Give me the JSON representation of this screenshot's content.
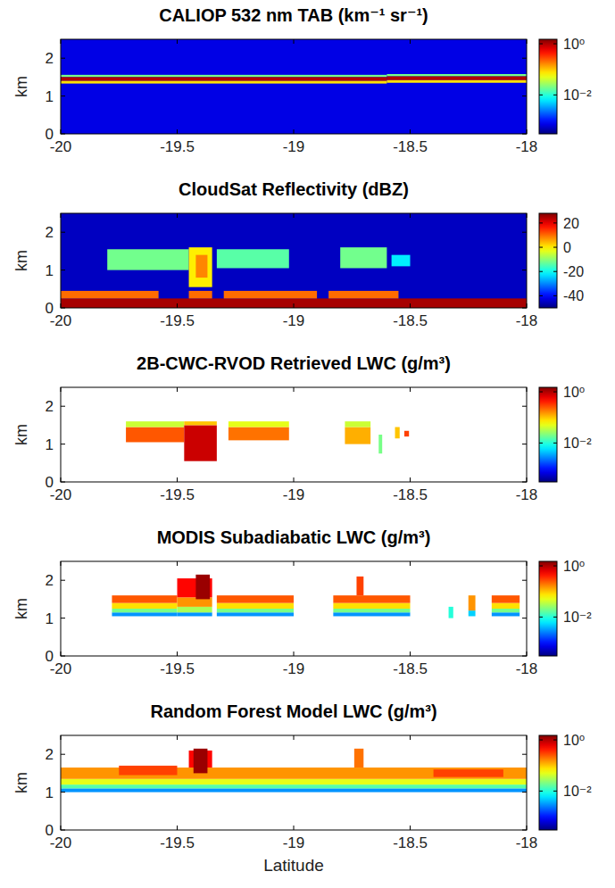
{
  "chart_data": [
    {
      "type": "heatmap",
      "title": "CALIOP 532 nm TAB (km⁻¹ sr⁻¹)",
      "ylabel": "km",
      "xlim": [
        -20,
        -18
      ],
      "xticks": [
        -20,
        -19.5,
        -19,
        -18.5,
        -18
      ],
      "ylim": [
        0,
        2.5
      ],
      "yticks": [
        0,
        1,
        2
      ],
      "colorbar": {
        "range": [
          0.0003,
          1.5
        ],
        "log": true,
        "ticks": [
          {
            "value": 1,
            "label": "10⁰"
          },
          {
            "value": 0.01,
            "label": "10⁻²"
          }
        ]
      },
      "cells": [
        {
          "x": [
            -20,
            -18
          ],
          "y": [
            0,
            2.5
          ],
          "value": 0.0007
        },
        {
          "x": [
            -20,
            -18.6
          ],
          "y": [
            1.5,
            1.56
          ],
          "value": 0.02
        },
        {
          "x": [
            -20,
            -18.6
          ],
          "y": [
            1.4,
            1.5
          ],
          "value": 1
        },
        {
          "x": [
            -20,
            -18.6
          ],
          "y": [
            1.33,
            1.4
          ],
          "value": 0.08
        },
        {
          "x": [
            -18.6,
            -18
          ],
          "y": [
            1.52,
            1.58
          ],
          "value": 0.02
        },
        {
          "x": [
            -18.6,
            -18
          ],
          "y": [
            1.42,
            1.52
          ],
          "value": 1
        },
        {
          "x": [
            -18.6,
            -18
          ],
          "y": [
            1.35,
            1.42
          ],
          "value": 0.08
        }
      ]
    },
    {
      "type": "heatmap",
      "title": "CloudSat Reflectivity (dBZ)",
      "ylabel": "km",
      "xlim": [
        -20,
        -18
      ],
      "xticks": [
        -20,
        -19.5,
        -19,
        -18.5,
        -18
      ],
      "ylim": [
        0,
        2.5
      ],
      "yticks": [
        0,
        1,
        2
      ],
      "colorbar": {
        "range": [
          -50,
          28
        ],
        "log": false,
        "ticks": [
          20,
          0,
          -20,
          -40
        ]
      },
      "cells": [
        {
          "x": [
            -20,
            -18
          ],
          "y": [
            0,
            2.5
          ],
          "value": -45
        },
        {
          "x": [
            -20,
            -18
          ],
          "y": [
            0,
            0.25
          ],
          "value": 25
        },
        {
          "x": [
            -20,
            -19.58
          ],
          "y": [
            0.25,
            0.45
          ],
          "value": 10
        },
        {
          "x": [
            -19.45,
            -19.35
          ],
          "y": [
            0.25,
            0.45
          ],
          "value": 10
        },
        {
          "x": [
            -19.3,
            -18.9
          ],
          "y": [
            0.25,
            0.45
          ],
          "value": 10
        },
        {
          "x": [
            -18.85,
            -18.55
          ],
          "y": [
            0.25,
            0.45
          ],
          "value": 10
        },
        {
          "x": [
            -19.8,
            -19.45
          ],
          "y": [
            1.0,
            1.55
          ],
          "value": -12
        },
        {
          "x": [
            -19.45,
            -19.35
          ],
          "y": [
            0.55,
            1.6
          ],
          "value": 0
        },
        {
          "x": [
            -19.42,
            -19.37
          ],
          "y": [
            0.8,
            1.4
          ],
          "value": 8
        },
        {
          "x": [
            -19.33,
            -19.02
          ],
          "y": [
            1.05,
            1.55
          ],
          "value": -14
        },
        {
          "x": [
            -18.8,
            -18.6
          ],
          "y": [
            1.05,
            1.6
          ],
          "value": -12
        },
        {
          "x": [
            -18.58,
            -18.5
          ],
          "y": [
            1.1,
            1.4
          ],
          "value": -22
        }
      ]
    },
    {
      "type": "heatmap",
      "title": "2B-CWC-RVOD Retrieved LWC (g/m³)",
      "ylabel": "km",
      "xlim": [
        -20,
        -18
      ],
      "xticks": [
        -20,
        -19.5,
        -19,
        -18.5,
        -18
      ],
      "ylim": [
        0,
        2.5
      ],
      "yticks": [
        0,
        1,
        2
      ],
      "colorbar": {
        "range": [
          0.0003,
          1.5
        ],
        "log": true,
        "ticks": [
          {
            "value": 1,
            "label": "10⁰"
          },
          {
            "value": 0.01,
            "label": "10⁻²"
          }
        ]
      },
      "cells": [
        {
          "x": [
            -19.72,
            -19.47
          ],
          "y": [
            1.05,
            1.45
          ],
          "value": 0.25
        },
        {
          "x": [
            -19.72,
            -19.47
          ],
          "y": [
            1.45,
            1.6
          ],
          "value": 0.04
        },
        {
          "x": [
            -19.47,
            -19.33
          ],
          "y": [
            0.55,
            1.5
          ],
          "value": 0.8
        },
        {
          "x": [
            -19.47,
            -19.33
          ],
          "y": [
            1.5,
            1.6
          ],
          "value": 0.1
        },
        {
          "x": [
            -19.28,
            -19.02
          ],
          "y": [
            1.1,
            1.45
          ],
          "value": 0.2
        },
        {
          "x": [
            -19.28,
            -19.02
          ],
          "y": [
            1.45,
            1.6
          ],
          "value": 0.05
        },
        {
          "x": [
            -18.78,
            -18.67
          ],
          "y": [
            1.0,
            1.45
          ],
          "value": 0.12
        },
        {
          "x": [
            -18.78,
            -18.67
          ],
          "y": [
            1.45,
            1.6
          ],
          "value": 0.04
        },
        {
          "x": [
            -18.635,
            -18.62
          ],
          "y": [
            0.75,
            1.25
          ],
          "value": 0.02
        },
        {
          "x": [
            -18.565,
            -18.545
          ],
          "y": [
            1.15,
            1.45
          ],
          "value": 0.1
        },
        {
          "x": [
            -18.525,
            -18.505
          ],
          "y": [
            1.2,
            1.35
          ],
          "value": 0.3
        }
      ]
    },
    {
      "type": "heatmap",
      "title": "MODIS Subadiabatic LWC (g/m³)",
      "ylabel": "km",
      "xlim": [
        -20,
        -18
      ],
      "xticks": [
        -20,
        -19.5,
        -19,
        -18.5,
        -18
      ],
      "ylim": [
        0,
        2.5
      ],
      "yticks": [
        0,
        1,
        2
      ],
      "colorbar": {
        "range": [
          0.0003,
          1.5
        ],
        "log": true,
        "ticks": [
          {
            "value": 1,
            "label": "10⁰"
          },
          {
            "value": 0.01,
            "label": "10⁻²"
          }
        ]
      },
      "cells": [
        {
          "x": [
            -19.78,
            -19.5
          ],
          "y": [
            1.05,
            1.15
          ],
          "value": 0.003
        },
        {
          "x": [
            -19.78,
            -19.5
          ],
          "y": [
            1.15,
            1.25
          ],
          "value": 0.02
        },
        {
          "x": [
            -19.78,
            -19.5
          ],
          "y": [
            1.25,
            1.4
          ],
          "value": 0.08
        },
        {
          "x": [
            -19.78,
            -19.5
          ],
          "y": [
            1.4,
            1.6
          ],
          "value": 0.25
        },
        {
          "x": [
            -19.5,
            -19.35
          ],
          "y": [
            1.05,
            1.15
          ],
          "value": 0.003
        },
        {
          "x": [
            -19.5,
            -19.35
          ],
          "y": [
            1.15,
            1.3
          ],
          "value": 0.03
        },
        {
          "x": [
            -19.5,
            -19.35
          ],
          "y": [
            1.3,
            1.55
          ],
          "value": 0.15
        },
        {
          "x": [
            -19.5,
            -19.35
          ],
          "y": [
            1.55,
            2.05
          ],
          "value": 0.5
        },
        {
          "x": [
            -19.42,
            -19.36
          ],
          "y": [
            1.5,
            2.15
          ],
          "value": 1.2
        },
        {
          "x": [
            -19.33,
            -19.0
          ],
          "y": [
            1.05,
            1.15
          ],
          "value": 0.003
        },
        {
          "x": [
            -19.33,
            -19.0
          ],
          "y": [
            1.15,
            1.25
          ],
          "value": 0.02
        },
        {
          "x": [
            -19.33,
            -19.0
          ],
          "y": [
            1.25,
            1.4
          ],
          "value": 0.08
        },
        {
          "x": [
            -19.33,
            -19.0
          ],
          "y": [
            1.4,
            1.6
          ],
          "value": 0.25
        },
        {
          "x": [
            -18.83,
            -18.5
          ],
          "y": [
            1.05,
            1.15
          ],
          "value": 0.003
        },
        {
          "x": [
            -18.83,
            -18.5
          ],
          "y": [
            1.15,
            1.25
          ],
          "value": 0.02
        },
        {
          "x": [
            -18.83,
            -18.5
          ],
          "y": [
            1.25,
            1.4
          ],
          "value": 0.08
        },
        {
          "x": [
            -18.83,
            -18.5
          ],
          "y": [
            1.4,
            1.6
          ],
          "value": 0.25
        },
        {
          "x": [
            -18.73,
            -18.7
          ],
          "y": [
            1.6,
            2.1
          ],
          "value": 0.3
        },
        {
          "x": [
            -18.335,
            -18.315
          ],
          "y": [
            1.0,
            1.3
          ],
          "value": 0.01
        },
        {
          "x": [
            -18.25,
            -18.22
          ],
          "y": [
            1.05,
            1.2
          ],
          "value": 0.005
        },
        {
          "x": [
            -18.25,
            -18.22
          ],
          "y": [
            1.2,
            1.6
          ],
          "value": 0.15
        },
        {
          "x": [
            -18.15,
            -18.03
          ],
          "y": [
            1.05,
            1.15
          ],
          "value": 0.003
        },
        {
          "x": [
            -18.15,
            -18.03
          ],
          "y": [
            1.15,
            1.25
          ],
          "value": 0.02
        },
        {
          "x": [
            -18.15,
            -18.03
          ],
          "y": [
            1.25,
            1.4
          ],
          "value": 0.08
        },
        {
          "x": [
            -18.15,
            -18.03
          ],
          "y": [
            1.4,
            1.6
          ],
          "value": 0.25
        }
      ]
    },
    {
      "type": "heatmap",
      "title": "Random Forest Model LWC (g/m³)",
      "ylabel": "km",
      "xlabel": "Latitude",
      "xlim": [
        -20,
        -18
      ],
      "xticks": [
        -20,
        -19.5,
        -19,
        -18.5,
        -18
      ],
      "ylim": [
        0,
        2.5
      ],
      "yticks": [
        0,
        1,
        2
      ],
      "colorbar": {
        "range": [
          0.0003,
          1.5
        ],
        "log": true,
        "ticks": [
          {
            "value": 1,
            "label": "10⁰"
          },
          {
            "value": 0.01,
            "label": "10⁻²"
          }
        ]
      },
      "cells": [
        {
          "x": [
            -20,
            -18
          ],
          "y": [
            1.0,
            1.1
          ],
          "value": 0.003
        },
        {
          "x": [
            -20,
            -18
          ],
          "y": [
            1.1,
            1.2
          ],
          "value": 0.015
        },
        {
          "x": [
            -20,
            -18
          ],
          "y": [
            1.2,
            1.35
          ],
          "value": 0.05
        },
        {
          "x": [
            -20,
            -18
          ],
          "y": [
            1.35,
            1.65
          ],
          "value": 0.15
        },
        {
          "x": [
            -19.75,
            -19.5
          ],
          "y": [
            1.45,
            1.7
          ],
          "value": 0.3
        },
        {
          "x": [
            -19.45,
            -19.35
          ],
          "y": [
            1.65,
            2.1
          ],
          "value": 0.5
        },
        {
          "x": [
            -19.43,
            -19.37
          ],
          "y": [
            1.5,
            2.15
          ],
          "value": 1.2
        },
        {
          "x": [
            -18.74,
            -18.7
          ],
          "y": [
            1.65,
            2.15
          ],
          "value": 0.2
        },
        {
          "x": [
            -18.4,
            -18.1
          ],
          "y": [
            1.4,
            1.6
          ],
          "value": 0.3
        }
      ]
    }
  ]
}
